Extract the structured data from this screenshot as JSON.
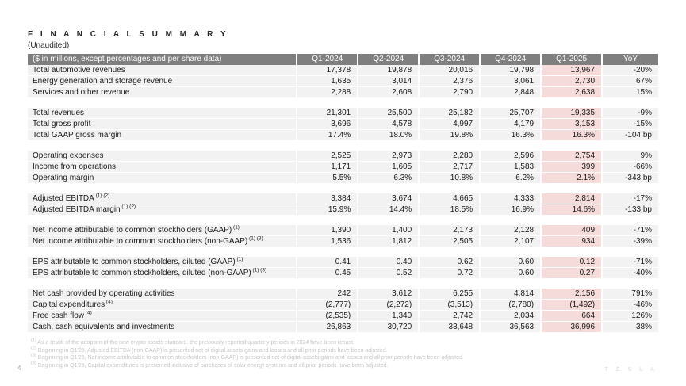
{
  "page": {
    "title": "F I N A N C I A L   S U M M A R Y",
    "subtitle": "(Unaudited)",
    "page_number": "4",
    "watermark": "T E S L A"
  },
  "colors": {
    "header_bg": "#7f7f7f",
    "header_text": "#ffffff",
    "row_bg": "#f2f2f2",
    "highlight_bg": "#f5dcdb",
    "body_text": "#1a1a1a",
    "footnote_text": "#c6c6c6"
  },
  "table": {
    "header_label": "($ in millions, except percentages and per share data)",
    "columns": [
      "Q1-2024",
      "Q2-2024",
      "Q3-2024",
      "Q4-2024",
      "Q1-2025",
      "YoY"
    ],
    "highlight_column": "Q1-2025",
    "highlight_column_index": 4,
    "sections": [
      {
        "rows": [
          {
            "label": "Total automotive revenues",
            "sup": "",
            "values": [
              "17,378",
              "19,878",
              "20,016",
              "19,798",
              "13,967",
              "-20%"
            ]
          },
          {
            "label": "Energy generation and storage revenue",
            "sup": "",
            "values": [
              "1,635",
              "3,014",
              "2,376",
              "3,061",
              "2,730",
              "67%"
            ]
          },
          {
            "label": "Services and other revenue",
            "sup": "",
            "values": [
              "2,288",
              "2,608",
              "2,790",
              "2,848",
              "2,638",
              "15%"
            ]
          }
        ]
      },
      {
        "rows": [
          {
            "label": "Total revenues",
            "sup": "",
            "values": [
              "21,301",
              "25,500",
              "25,182",
              "25,707",
              "19,335",
              "-9%"
            ]
          },
          {
            "label": "Total gross profit",
            "sup": "",
            "values": [
              "3,696",
              "4,578",
              "4,997",
              "4,179",
              "3,153",
              "-15%"
            ]
          },
          {
            "label": "Total GAAP gross margin",
            "sup": "",
            "values": [
              "17.4%",
              "18.0%",
              "19.8%",
              "16.3%",
              "16.3%",
              "-104 bp"
            ]
          }
        ]
      },
      {
        "rows": [
          {
            "label": "Operating expenses",
            "sup": "",
            "values": [
              "2,525",
              "2,973",
              "2,280",
              "2,596",
              "2,754",
              "9%"
            ]
          },
          {
            "label": "Income from operations",
            "sup": "",
            "values": [
              "1,171",
              "1,605",
              "2,717",
              "1,583",
              "399",
              "-66%"
            ]
          },
          {
            "label": "Operating margin",
            "sup": "",
            "values": [
              "5.5%",
              "6.3%",
              "10.8%",
              "6.2%",
              "2.1%",
              "-343 bp"
            ]
          }
        ]
      },
      {
        "rows": [
          {
            "label": "Adjusted EBITDA",
            "sup": "(1) (2)",
            "values": [
              "3,384",
              "3,674",
              "4,665",
              "4,333",
              "2,814",
              "-17%"
            ]
          },
          {
            "label": "Adjusted EBITDA margin",
            "sup": "(1) (2)",
            "values": [
              "15.9%",
              "14.4%",
              "18.5%",
              "16.9%",
              "14.6%",
              "-133 bp"
            ]
          }
        ]
      },
      {
        "rows": [
          {
            "label": "Net income attributable to common stockholders (GAAP)",
            "sup": "(1)",
            "values": [
              "1,390",
              "1,400",
              "2,173",
              "2,128",
              "409",
              "-71%"
            ]
          },
          {
            "label": "Net income attributable to common stockholders (non-GAAP)",
            "sup": "(1) (3)",
            "values": [
              "1,536",
              "1,812",
              "2,505",
              "2,107",
              "934",
              "-39%"
            ]
          }
        ]
      },
      {
        "rows": [
          {
            "label": "EPS attributable to common stockholders, diluted (GAAP)",
            "sup": "(1)",
            "values": [
              "0.41",
              "0.40",
              "0.62",
              "0.60",
              "0.12",
              "-71%"
            ]
          },
          {
            "label": "EPS attributable to common stockholders, diluted (non-GAAP)",
            "sup": "(1) (3)",
            "values": [
              "0.45",
              "0.52",
              "0.72",
              "0.60",
              "0.27",
              "-40%"
            ]
          }
        ]
      },
      {
        "rows": [
          {
            "label": "Net cash provided by operating activities",
            "sup": "",
            "values": [
              "242",
              "3,612",
              "6,255",
              "4,814",
              "2,156",
              "791%"
            ]
          },
          {
            "label": "Capital expenditures",
            "sup": "(4)",
            "values": [
              "(2,777)",
              "(2,272)",
              "(3,513)",
              "(2,780)",
              "(1,492)",
              "-46%"
            ]
          },
          {
            "label": "Free cash flow",
            "sup": "(4)",
            "values": [
              "(2,535)",
              "1,340",
              "2,742",
              "2,034",
              "664",
              "126%"
            ]
          },
          {
            "label": "Cash, cash equivalents and investments",
            "sup": "",
            "values": [
              "26,863",
              "30,720",
              "33,648",
              "36,563",
              "36,996",
              "38%"
            ]
          }
        ]
      }
    ]
  },
  "footnotes": [
    {
      "marker": "(1)",
      "text": "As a result of the adoption of the new crypto assets standard, the previously reported quarterly periods in 2024 have been recast."
    },
    {
      "marker": "(2)",
      "text": "Beginning in Q1'25, Adjusted EBITDA (non-GAAP) is presented net of digital assets gains and losses and all prior periods have been adjusted."
    },
    {
      "marker": "(3)",
      "text": "Beginning in Q1'25, Net income attributable to common stockholders (non-GAAP) is presented net of digital assets gains and losses and all prior periods have been adjusted."
    },
    {
      "marker": "(4)",
      "text": "Beginning in Q1'25, Capital expenditures is presented inclusive of purchases of solar energy systems and all prior periods have been adjusted."
    }
  ]
}
